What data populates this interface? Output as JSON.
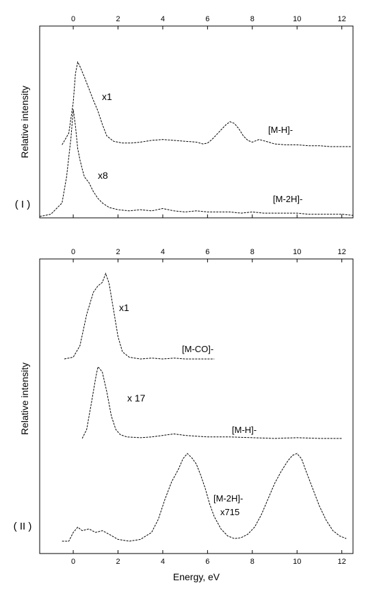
{
  "chart_data": [
    {
      "type": "line",
      "panel_label": "( I )",
      "ylabel": "Relative intensity",
      "xlabel": "",
      "xlim": [
        -1.5,
        12.5
      ],
      "xticks": [
        0,
        2,
        4,
        6,
        8,
        10,
        12
      ],
      "ticks_top": true,
      "grid": false,
      "series": [
        {
          "name": "[M-H]-",
          "scale_label": "x1",
          "x": [
            -0.5,
            -0.2,
            0.0,
            0.1,
            0.2,
            0.3,
            0.5,
            0.7,
            0.9,
            1.1,
            1.3,
            1.5,
            1.8,
            2.2,
            2.6,
            3.0,
            3.5,
            4.0,
            4.5,
            5.0,
            5.5,
            5.8,
            6.0,
            6.2,
            6.5,
            6.8,
            7.0,
            7.2,
            7.4,
            7.6,
            7.8,
            8.0,
            8.3,
            8.6,
            9.0,
            9.5,
            10.0,
            10.5,
            11.0,
            11.5,
            12.0,
            12.4
          ],
          "y": [
            0.02,
            0.15,
            0.5,
            0.82,
            0.95,
            0.9,
            0.78,
            0.65,
            0.52,
            0.4,
            0.25,
            0.12,
            0.06,
            0.04,
            0.04,
            0.05,
            0.07,
            0.08,
            0.07,
            0.06,
            0.05,
            0.03,
            0.04,
            0.08,
            0.16,
            0.24,
            0.28,
            0.26,
            0.2,
            0.12,
            0.07,
            0.05,
            0.08,
            0.06,
            0.03,
            0.02,
            0.02,
            0.01,
            0.01,
            0.0,
            0.0,
            0.0
          ]
        },
        {
          "name": "[M-2H]-",
          "scale_label": "x8",
          "x": [
            -1.5,
            -1.0,
            -0.5,
            -0.3,
            -0.1,
            0.0,
            0.1,
            0.2,
            0.3,
            0.4,
            0.5,
            0.7,
            0.9,
            1.1,
            1.3,
            1.6,
            2.0,
            2.5,
            3.0,
            3.5,
            4.0,
            4.5,
            5.0,
            5.5,
            6.0,
            6.5,
            7.0,
            7.5,
            8.0,
            8.5,
            9.0,
            9.5,
            10.0,
            10.5,
            11.0,
            11.5,
            12.0,
            12.5
          ],
          "y": [
            0.0,
            0.02,
            0.12,
            0.35,
            0.7,
            0.95,
            0.8,
            0.6,
            0.5,
            0.42,
            0.35,
            0.3,
            0.22,
            0.16,
            0.12,
            0.08,
            0.06,
            0.05,
            0.06,
            0.05,
            0.07,
            0.05,
            0.04,
            0.05,
            0.04,
            0.04,
            0.04,
            0.03,
            0.04,
            0.03,
            0.03,
            0.03,
            0.03,
            0.02,
            0.02,
            0.02,
            0.02,
            0.01
          ]
        }
      ]
    },
    {
      "type": "line",
      "panel_label": "( II )",
      "ylabel": "Relative intensity",
      "xlabel": "Energy, eV",
      "xlim": [
        -1.5,
        12.5
      ],
      "xticks": [
        0,
        2,
        4,
        6,
        8,
        10,
        12
      ],
      "ticks_top": true,
      "grid": false,
      "series": [
        {
          "name": "[M-CO]-",
          "scale_label": "x1",
          "x": [
            -0.4,
            0.0,
            0.3,
            0.6,
            0.9,
            1.1,
            1.3,
            1.45,
            1.6,
            1.8,
            2.0,
            2.2,
            2.5,
            3.0,
            3.5,
            4.0,
            4.5,
            5.0,
            5.5,
            6.0,
            6.3
          ],
          "y": [
            0.0,
            0.02,
            0.15,
            0.5,
            0.75,
            0.82,
            0.86,
            0.96,
            0.85,
            0.55,
            0.25,
            0.08,
            0.02,
            0.0,
            0.01,
            0.0,
            0.01,
            0.0,
            0.0,
            0.0,
            0.0
          ]
        },
        {
          "name": "[M-H]-",
          "scale_label": "x 17",
          "x": [
            0.4,
            0.6,
            0.8,
            1.0,
            1.1,
            1.2,
            1.3,
            1.5,
            1.7,
            1.9,
            2.1,
            2.4,
            3.0,
            3.5,
            4.0,
            4.5,
            5.0,
            6.0,
            7.0,
            8.0,
            9.0,
            10.0,
            11.0,
            12.0
          ],
          "y": [
            0.0,
            0.12,
            0.45,
            0.8,
            0.95,
            0.92,
            0.88,
            0.62,
            0.3,
            0.12,
            0.05,
            0.02,
            0.01,
            0.02,
            0.04,
            0.06,
            0.04,
            0.02,
            0.02,
            0.01,
            0.0,
            0.01,
            0.0,
            0.0
          ]
        },
        {
          "name": "[M-2H]-",
          "scale_label": "x715",
          "x": [
            -0.5,
            -0.2,
            0.0,
            0.2,
            0.4,
            0.7,
            1.0,
            1.3,
            1.6,
            2.0,
            2.5,
            3.0,
            3.5,
            3.8,
            4.1,
            4.4,
            4.7,
            4.9,
            5.1,
            5.3,
            5.5,
            5.7,
            5.9,
            6.1,
            6.3,
            6.6,
            6.9,
            7.2,
            7.5,
            7.8,
            8.1,
            8.4,
            8.7,
            9.0,
            9.3,
            9.6,
            9.8,
            10.0,
            10.2,
            10.4,
            10.7,
            11.0,
            11.3,
            11.6,
            11.9,
            12.2
          ],
          "y": [
            0.0,
            0.0,
            0.1,
            0.16,
            0.12,
            0.14,
            0.1,
            0.12,
            0.08,
            0.02,
            0.0,
            0.02,
            0.1,
            0.25,
            0.48,
            0.68,
            0.82,
            0.94,
            1.0,
            0.95,
            0.88,
            0.75,
            0.6,
            0.42,
            0.28,
            0.14,
            0.06,
            0.03,
            0.04,
            0.08,
            0.16,
            0.3,
            0.48,
            0.66,
            0.8,
            0.92,
            0.98,
            1.0,
            0.94,
            0.8,
            0.6,
            0.4,
            0.24,
            0.12,
            0.06,
            0.03
          ]
        }
      ]
    }
  ]
}
